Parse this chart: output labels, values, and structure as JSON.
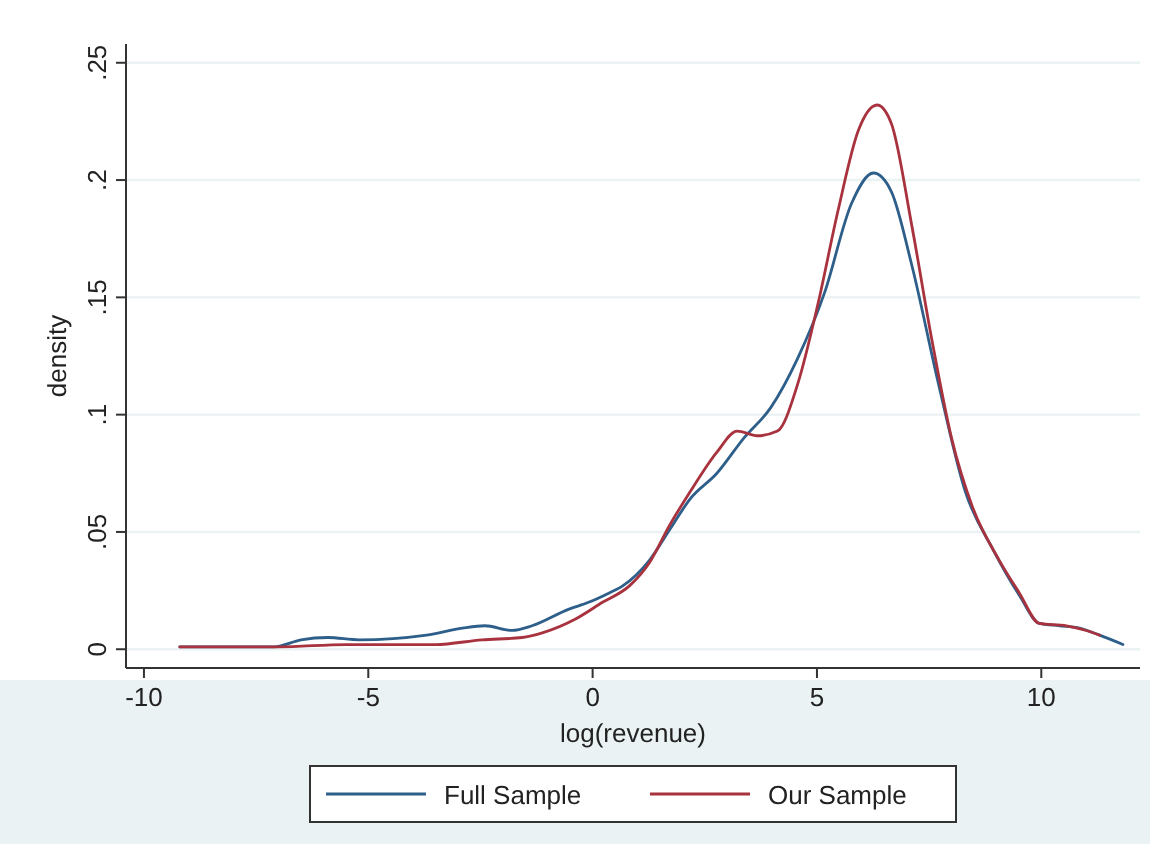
{
  "chart_data": {
    "type": "line",
    "xlabel": "log(revenue)",
    "ylabel": "density",
    "xlim": [
      -10.4,
      12.2
    ],
    "ylim": [
      -0.008,
      0.258
    ],
    "xticks": [
      -10,
      -5,
      0,
      5,
      10
    ],
    "yticks": [
      {
        "value": 0,
        "label": "0"
      },
      {
        "value": 0.05,
        "label": ".05"
      },
      {
        "value": 0.1,
        "label": ".1"
      },
      {
        "value": 0.15,
        "label": ".15"
      },
      {
        "value": 0.2,
        "label": ".2"
      },
      {
        "value": 0.25,
        "label": ".25"
      }
    ],
    "grid": "y",
    "legend": "bottom",
    "line_style": "solid",
    "marker": "none",
    "series": [
      {
        "name": "Full Sample",
        "color": "#2e5f8a",
        "x": [
          -9.2,
          -7.1,
          -6.5,
          -5.9,
          -5.2,
          -3.7,
          -2.9,
          -2.4,
          -1.8,
          -1.35,
          -0.54,
          -0.09,
          0.37,
          0.67,
          1.27,
          1.72,
          2.17,
          2.77,
          3.37,
          3.97,
          4.57,
          5.17,
          5.77,
          6.26,
          6.66,
          7.11,
          7.71,
          8.31,
          8.91,
          9.51,
          9.96,
          10.41,
          10.85,
          11.3,
          11.82
        ],
        "values": [
          0.001,
          0.001,
          0.004,
          0.005,
          0.004,
          0.006,
          0.009,
          0.01,
          0.008,
          0.01,
          0.017,
          0.02,
          0.024,
          0.027,
          0.038,
          0.051,
          0.064,
          0.075,
          0.09,
          0.103,
          0.124,
          0.152,
          0.19,
          0.203,
          0.195,
          0.164,
          0.113,
          0.067,
          0.043,
          0.023,
          0.011,
          0.01,
          0.009,
          0.006,
          0.002
        ]
      },
      {
        "name": "Our Sample",
        "color": "#a8323e",
        "x": [
          -9.2,
          -7,
          -5.5,
          -3.5,
          -2.47,
          -1.57,
          -1.12,
          -0.37,
          0.22,
          0.82,
          1.27,
          1.72,
          2.17,
          2.77,
          3.22,
          3.67,
          4.12,
          4.57,
          5.02,
          5.47,
          5.92,
          6.34,
          6.66,
          7.11,
          7.56,
          8.0,
          8.46,
          9.06,
          9.51,
          9.96,
          10.56,
          11.0,
          11.3
        ],
        "values": [
          0.001,
          0.001,
          0.002,
          0.002,
          0.004,
          0.005,
          0.007,
          0.013,
          0.02,
          0.027,
          0.037,
          0.053,
          0.067,
          0.084,
          0.093,
          0.091,
          0.093,
          0.113,
          0.147,
          0.187,
          0.221,
          0.232,
          0.224,
          0.181,
          0.132,
          0.09,
          0.061,
          0.038,
          0.024,
          0.011,
          0.01,
          0.008,
          0.006
        ]
      }
    ]
  }
}
